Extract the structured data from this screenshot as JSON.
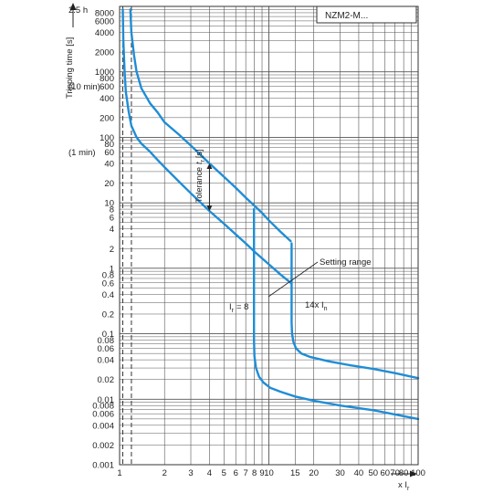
{
  "chart_data": {
    "type": "line",
    "title": "NZM2-M...",
    "ylabel": "Tripping time [s]",
    "xlabel": "x I",
    "xlabel_sub": "r",
    "xscale": "log",
    "yscale": "log",
    "xlim": [
      1,
      100
    ],
    "ylim": [
      0.001,
      10000
    ],
    "grid": true,
    "x_ticks": [
      1,
      2,
      3,
      4,
      5,
      6,
      7,
      8,
      9,
      10,
      15,
      20,
      30,
      40,
      50,
      60,
      70,
      80,
      100
    ],
    "x_tick_labels": [
      "1",
      "2",
      "3",
      "4",
      "5",
      "6",
      "7",
      "8",
      "9",
      "10",
      "15",
      "20",
      "30",
      "40",
      "50",
      "60",
      "70",
      "80",
      "100"
    ],
    "y_ticks": [
      0.001,
      0.002,
      0.004,
      0.006,
      0.008,
      0.01,
      0.02,
      0.04,
      0.06,
      0.08,
      0.1,
      0.2,
      0.4,
      0.6,
      0.8,
      1,
      2,
      4,
      6,
      8,
      10,
      20,
      40,
      60,
      80,
      100,
      200,
      400,
      600,
      800,
      1000,
      2000,
      4000,
      6000,
      8000
    ],
    "y_tick_labels": [
      "0.001",
      "0.002",
      "0.004",
      "0.006",
      "0.008",
      "0.01",
      "0.02",
      "0.04",
      "0.06",
      "0.08",
      "0.1",
      "0.2",
      "0.4",
      "0.6",
      "0.8",
      "1",
      "2",
      "4",
      "6",
      "8",
      "10",
      "20",
      "40",
      "60",
      "80",
      "100",
      "200",
      "400",
      "600",
      "800",
      "1000",
      "2000",
      "4000",
      "6000",
      "8000"
    ],
    "y_side_labels": [
      {
        "y": 9000,
        "text": "2.5 h"
      },
      {
        "y": 600,
        "text": "(10 min)"
      },
      {
        "y": 60,
        "text": "(1 min)"
      }
    ],
    "dashed_lines_x": [
      1.05,
      1.2
    ],
    "series": [
      {
        "x": [
          1.18,
          1.2,
          1.25,
          1.3,
          1.4,
          1.6,
          1.8,
          2.0,
          2.5,
          3,
          4,
          5,
          6,
          7,
          8,
          9,
          10,
          12,
          14
        ],
        "y": [
          9000,
          4000,
          1800,
          1000,
          560,
          330,
          240,
          170,
          110,
          75,
          40,
          25,
          17,
          12,
          9,
          7,
          5.4,
          3.6,
          2.6
        ]
      },
      {
        "x": [
          1.05,
          1.06,
          1.08,
          1.1,
          1.15,
          1.2,
          1.3,
          1.4,
          1.6,
          1.8,
          2,
          2.5,
          3,
          4,
          5,
          6,
          7,
          8,
          10,
          12,
          14
        ],
        "y": [
          9000,
          3000,
          1000,
          500,
          250,
          150,
          100,
          80,
          60,
          45,
          35,
          21,
          14,
          7.5,
          4.8,
          3.3,
          2.4,
          1.8,
          1.15,
          0.8,
          0.6
        ]
      },
      {
        "x": [
          7.95,
          7.95,
          8.0,
          8.2,
          8.6,
          9.2,
          10.2,
          12,
          15,
          20,
          30,
          50,
          100
        ],
        "y": [
          8,
          0.08,
          0.045,
          0.03,
          0.022,
          0.018,
          0.015,
          0.013,
          0.011,
          0.0095,
          0.008,
          0.0068,
          0.005
        ]
      },
      {
        "x": [
          14.2,
          14.2,
          14.3,
          14.6,
          15.2,
          16.5,
          19,
          25,
          35,
          50,
          70,
          100
        ],
        "y": [
          2.4,
          0.15,
          0.1,
          0.075,
          0.06,
          0.05,
          0.044,
          0.038,
          0.033,
          0.029,
          0.025,
          0.021
        ]
      }
    ],
    "annotations": {
      "tolerance": "Tolerance",
      "tolerance_symbol": "t",
      "tolerance_sub": "r",
      "tolerance_unit": "[s]",
      "setting_range": "Setting range",
      "ir_label": "I",
      "ir_sub": "r",
      "ir_value": "= 8",
      "in_label": "14x I",
      "in_sub": "n"
    }
  }
}
